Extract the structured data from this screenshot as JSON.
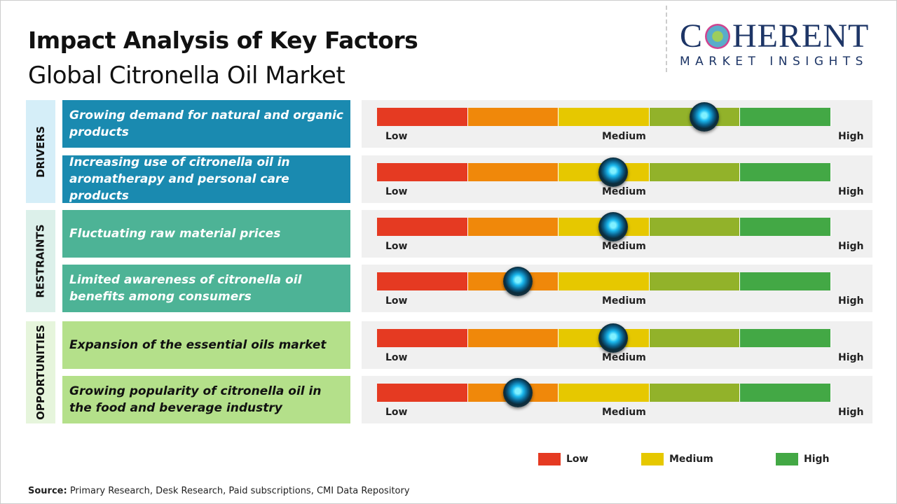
{
  "header": {
    "title": "Impact Analysis of Key Factors",
    "subtitle": "Global Citronella Oil Market"
  },
  "logo": {
    "line1": "COHERENT",
    "line2": "MARKET INSIGHTS"
  },
  "chart_data": {
    "type": "gauge",
    "scale_labels": [
      "Low",
      "Medium",
      "High"
    ],
    "segment_colors": [
      "#e53a22",
      "#f0880a",
      "#e6c800",
      "#92b22a",
      "#43a845"
    ],
    "categories": [
      {
        "name": "DRIVERS",
        "label_bg": "#d5eef8",
        "box_bg": "#1a8ab0",
        "text_color": "#ffffff",
        "factors": [
          {
            "text": "Growing demand for natural and organic products",
            "impact": 0.72
          },
          {
            "text": "Increasing use of citronella oil in aromatherapy and personal care products",
            "impact": 0.52
          }
        ]
      },
      {
        "name": "RESTRAINTS",
        "label_bg": "#dcf0ea",
        "box_bg": "#4db396",
        "text_color": "#ffffff",
        "factors": [
          {
            "text": "Fluctuating raw material prices",
            "impact": 0.52
          },
          {
            "text": "Limited awareness of citronella oil benefits among consumers",
            "impact": 0.31
          }
        ]
      },
      {
        "name": "OPPORTUNITIES",
        "label_bg": "#e6f5dc",
        "box_bg": "#b4e08a",
        "text_color": "#111111",
        "factors": [
          {
            "text": "Expansion of the essential oils market",
            "impact": 0.52
          },
          {
            "text": "Growing popularity of citronella oil in the food and beverage industry",
            "impact": 0.31
          }
        ]
      }
    ],
    "legend": [
      {
        "label": "Low",
        "color": "#e53a22"
      },
      {
        "label": "Medium",
        "color": "#e6c800"
      },
      {
        "label": "High",
        "color": "#43a845"
      }
    ]
  },
  "source": {
    "label": "Source:",
    "text": " Primary Research, Desk Research, Paid subscriptions, CMI Data Repository"
  }
}
